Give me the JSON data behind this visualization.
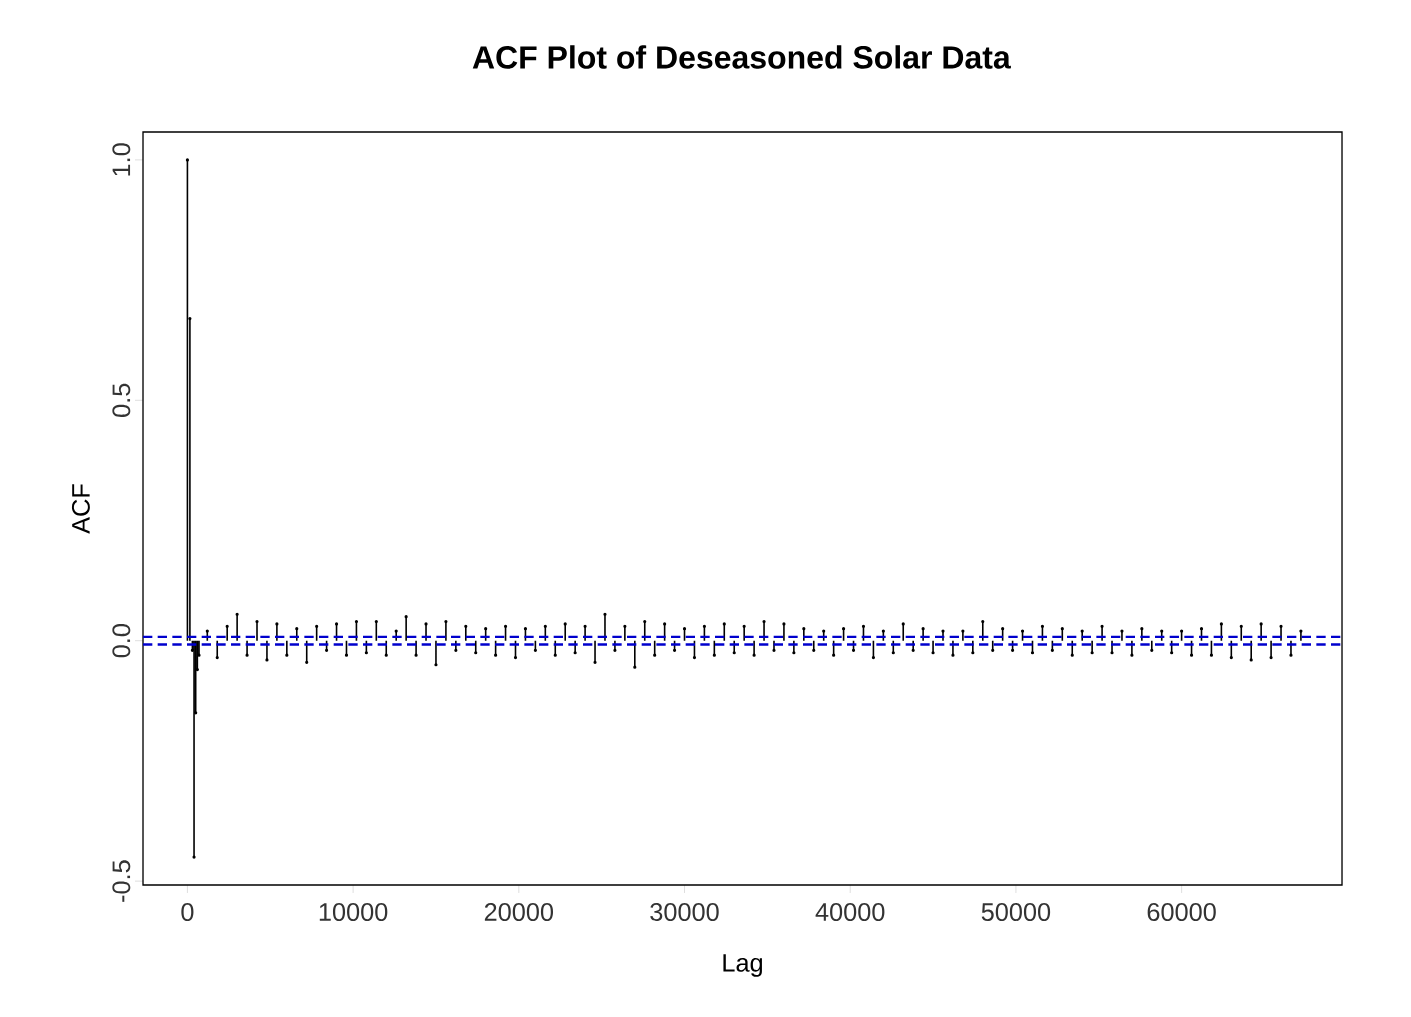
{
  "chart_data": {
    "type": "lollipop",
    "title": "ACF Plot of Deseasoned Solar Data",
    "xlabel": "Lag",
    "ylabel": "ACF",
    "x": [
      0,
      150,
      300,
      400,
      500,
      600,
      700,
      1200,
      1800,
      2400,
      3000,
      3600,
      4200,
      4800,
      5400,
      6000,
      6600,
      7200,
      7800,
      8400,
      9000,
      9600,
      10200,
      10800,
      11400,
      12000,
      12600,
      13200,
      13800,
      14400,
      15000,
      15600,
      16200,
      16800,
      17400,
      18000,
      18600,
      19200,
      19800,
      20400,
      21000,
      21600,
      22200,
      22800,
      23400,
      24000,
      24600,
      25200,
      25800,
      26400,
      27000,
      27600,
      28200,
      28800,
      29400,
      30000,
      30600,
      31200,
      31800,
      32400,
      33000,
      33600,
      34200,
      34800,
      35400,
      36000,
      36600,
      37200,
      37800,
      38400,
      39000,
      39600,
      40200,
      40800,
      41400,
      42000,
      42600,
      43200,
      43800,
      44400,
      45000,
      45600,
      46200,
      46800,
      47400,
      48000,
      48600,
      49200,
      49800,
      50400,
      51000,
      51600,
      52200,
      52800,
      53400,
      54000,
      54600,
      55200,
      55800,
      56400,
      57000,
      57600,
      58200,
      58800,
      59400,
      60000,
      60600,
      61200,
      61800,
      62400,
      63000,
      63600,
      64200,
      64800,
      65400,
      66000,
      66600,
      67200
    ],
    "values": [
      1.0,
      0.67,
      -0.02,
      -0.45,
      -0.15,
      -0.06,
      -0.03,
      0.02,
      -0.035,
      0.03,
      0.055,
      -0.03,
      0.04,
      -0.04,
      0.035,
      -0.03,
      0.025,
      -0.045,
      0.03,
      -0.02,
      0.035,
      -0.03,
      0.04,
      -0.025,
      0.04,
      -0.03,
      0.02,
      0.05,
      -0.03,
      0.035,
      -0.05,
      0.04,
      -0.02,
      0.03,
      -0.025,
      0.025,
      -0.03,
      0.03,
      -0.035,
      0.025,
      -0.02,
      0.03,
      -0.03,
      0.035,
      -0.025,
      0.03,
      -0.045,
      0.055,
      -0.02,
      0.03,
      -0.055,
      0.04,
      -0.03,
      0.035,
      -0.02,
      0.025,
      -0.035,
      0.03,
      -0.03,
      0.035,
      -0.025,
      0.03,
      -0.03,
      0.04,
      -0.02,
      0.035,
      -0.025,
      0.025,
      -0.02,
      0.02,
      -0.03,
      0.025,
      -0.02,
      0.03,
      -0.035,
      0.02,
      -0.025,
      0.035,
      -0.02,
      0.025,
      -0.025,
      0.02,
      -0.03,
      0.02,
      -0.025,
      0.04,
      -0.02,
      0.025,
      -0.02,
      0.02,
      -0.025,
      0.03,
      -0.02,
      0.025,
      -0.03,
      0.02,
      -0.025,
      0.03,
      -0.025,
      0.02,
      -0.03,
      0.025,
      -0.02,
      0.02,
      -0.025,
      0.02,
      -0.03,
      0.025,
      -0.03,
      0.035,
      -0.035,
      0.03,
      -0.04,
      0.035,
      -0.035,
      0.03,
      -0.03,
      0.02
    ],
    "color": "#000000",
    "xlim": [
      -2680,
      69680
    ],
    "ylim": [
      -0.508,
      1.058
    ],
    "xticks": [
      0,
      10000,
      20000,
      30000,
      40000,
      50000,
      60000
    ],
    "yticks": [
      {
        "value": -0.5,
        "label": "-0.5"
      },
      {
        "value": 0,
        "label": "0.0"
      },
      {
        "value": 0.5,
        "label": "0.5"
      },
      {
        "value": 1,
        "label": "1.0"
      }
    ],
    "ref_lines": [
      {
        "axis": "y",
        "value": 0.008,
        "color": "#0000cd",
        "line_style": "dashed"
      },
      {
        "axis": "y",
        "value": -0.008,
        "color": "#0000cd",
        "line_style": "dashed"
      }
    ]
  }
}
